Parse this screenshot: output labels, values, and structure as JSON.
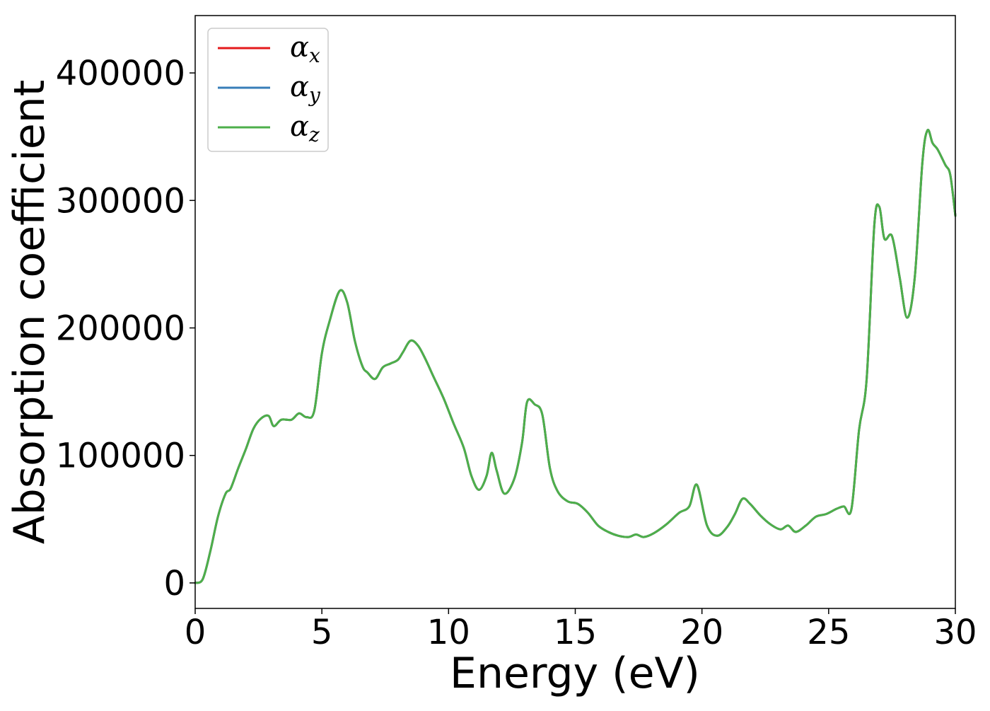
{
  "chart_data": {
    "type": "line",
    "title": "",
    "xlabel": "Energy (eV)",
    "ylabel": "Absorption coefficient",
    "xlim": [
      0,
      30
    ],
    "ylim": [
      -20000,
      445000
    ],
    "x_ticks": [
      0,
      5,
      10,
      15,
      20,
      25,
      30
    ],
    "y_ticks": [
      0,
      100000,
      200000,
      300000,
      400000
    ],
    "grid": false,
    "legend_position": "top-left",
    "x": [
      0,
      0.3,
      0.6,
      0.9,
      1.2,
      1.4,
      1.7,
      2.0,
      2.3,
      2.6,
      2.9,
      3.1,
      3.4,
      3.8,
      4.1,
      4.4,
      4.7,
      5.0,
      5.3,
      5.7,
      6.0,
      6.3,
      6.6,
      6.8,
      7.1,
      7.4,
      7.7,
      8.0,
      8.2,
      8.5,
      8.8,
      9.1,
      9.4,
      9.8,
      10.2,
      10.6,
      10.9,
      11.2,
      11.5,
      11.7,
      11.9,
      12.2,
      12.6,
      12.9,
      13.1,
      13.4,
      13.7,
      14.0,
      14.3,
      14.7,
      15.1,
      15.5,
      15.9,
      16.3,
      16.7,
      17.1,
      17.4,
      17.7,
      18.1,
      18.6,
      19.1,
      19.5,
      19.8,
      20.2,
      20.6,
      21.0,
      21.3,
      21.6,
      21.9,
      22.3,
      22.7,
      23.1,
      23.4,
      23.7,
      24.1,
      24.5,
      24.9,
      25.3,
      25.6,
      25.9,
      26.2,
      26.5,
      26.8,
      27.0,
      27.2,
      27.5,
      27.8,
      28.1,
      28.4,
      28.7,
      28.9,
      29.1,
      29.3,
      29.6,
      29.8,
      30.0
    ],
    "series": [
      {
        "name": "α_x",
        "color": "#e41a1c",
        "values": [
          0,
          3000,
          25000,
          52000,
          70000,
          74000,
          90000,
          105000,
          121000,
          129000,
          131000,
          123000,
          128000,
          128000,
          133000,
          130000,
          135000,
          180000,
          205000,
          229000,
          220000,
          190000,
          170000,
          165000,
          160000,
          169000,
          172000,
          175000,
          181000,
          190000,
          186000,
          175000,
          162000,
          145000,
          125000,
          106000,
          84000,
          73000,
          84000,
          102000,
          88000,
          70000,
          82000,
          110000,
          142000,
          140000,
          132000,
          90000,
          72000,
          64000,
          62000,
          55000,
          45000,
          40000,
          37000,
          36000,
          38000,
          36000,
          39000,
          46000,
          55000,
          60000,
          77000,
          45000,
          37000,
          44000,
          54000,
          66000,
          62000,
          53000,
          46000,
          42000,
          45000,
          40000,
          45000,
          52000,
          54000,
          58000,
          60000,
          58000,
          120000,
          160000,
          280000,
          295000,
          270000,
          272000,
          240000,
          208000,
          240000,
          330000,
          355000,
          345000,
          340000,
          328000,
          320000,
          288000
        ]
      },
      {
        "name": "α_y",
        "color": "#377eb8",
        "values": [
          0,
          3000,
          25000,
          52000,
          70000,
          74000,
          90000,
          105000,
          121000,
          129000,
          131000,
          123000,
          128000,
          128000,
          133000,
          130000,
          135000,
          180000,
          205000,
          229000,
          220000,
          190000,
          170000,
          165000,
          160000,
          169000,
          172000,
          175000,
          181000,
          190000,
          186000,
          175000,
          162000,
          145000,
          125000,
          106000,
          84000,
          73000,
          84000,
          102000,
          88000,
          70000,
          82000,
          110000,
          142000,
          140000,
          132000,
          90000,
          72000,
          64000,
          62000,
          55000,
          45000,
          40000,
          37000,
          36000,
          38000,
          36000,
          39000,
          46000,
          55000,
          60000,
          77000,
          45000,
          37000,
          44000,
          54000,
          66000,
          62000,
          53000,
          46000,
          42000,
          45000,
          40000,
          45000,
          52000,
          54000,
          58000,
          60000,
          58000,
          120000,
          160000,
          280000,
          295000,
          270000,
          272000,
          240000,
          208000,
          240000,
          330000,
          355000,
          345000,
          340000,
          328000,
          320000,
          288000
        ]
      },
      {
        "name": "α_z",
        "color": "#4daf4a",
        "values": [
          0,
          3000,
          25000,
          52000,
          70000,
          74000,
          90000,
          105000,
          121000,
          129000,
          131000,
          123000,
          128000,
          128000,
          133000,
          130000,
          135000,
          180000,
          205000,
          229000,
          220000,
          190000,
          170000,
          165000,
          160000,
          169000,
          172000,
          175000,
          181000,
          190000,
          186000,
          175000,
          162000,
          145000,
          125000,
          106000,
          84000,
          73000,
          84000,
          102000,
          88000,
          70000,
          82000,
          110000,
          142000,
          140000,
          132000,
          90000,
          72000,
          64000,
          62000,
          55000,
          45000,
          40000,
          37000,
          36000,
          38000,
          36000,
          39000,
          46000,
          55000,
          60000,
          77000,
          45000,
          37000,
          44000,
          54000,
          66000,
          62000,
          53000,
          46000,
          42000,
          45000,
          40000,
          45000,
          52000,
          54000,
          58000,
          60000,
          58000,
          120000,
          160000,
          280000,
          295000,
          270000,
          272000,
          240000,
          208000,
          240000,
          330000,
          355000,
          345000,
          340000,
          328000,
          320000,
          288000
        ]
      }
    ],
    "legend": [
      {
        "symbol": "α",
        "subscript": "x",
        "color": "#e41a1c"
      },
      {
        "symbol": "α",
        "subscript": "y",
        "color": "#377eb8"
      },
      {
        "symbol": "α",
        "subscript": "z",
        "color": "#4daf4a"
      }
    ]
  }
}
